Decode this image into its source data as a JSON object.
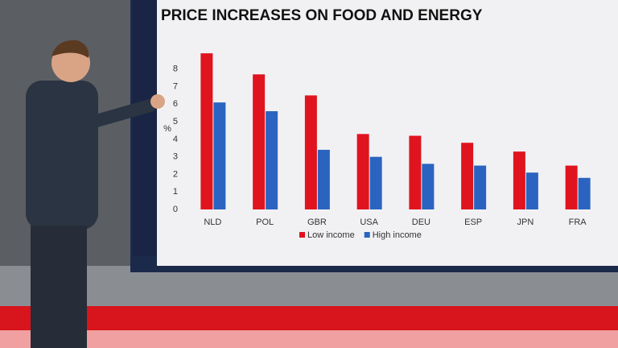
{
  "chart_data": {
    "type": "bar",
    "title": "PRICE INCREASES ON FOOD AND ENERGY",
    "ylabel": "%",
    "categories": [
      "NLD",
      "POL",
      "GBR",
      "USA",
      "DEU",
      "ESP",
      "JPN",
      "FRA"
    ],
    "series": [
      {
        "name": "Low income",
        "color": "#e0141e",
        "values": [
          8.9,
          7.7,
          6.5,
          4.3,
          4.2,
          3.8,
          3.3,
          2.5
        ]
      },
      {
        "name": "High income",
        "color": "#2a64c0",
        "values": [
          6.1,
          5.6,
          3.4,
          3.0,
          2.6,
          2.5,
          2.1,
          1.8
        ]
      }
    ],
    "ylim": [
      0,
      9
    ],
    "yticks": [
      0,
      1,
      2,
      3,
      4,
      5,
      6,
      7,
      8
    ],
    "grid": false,
    "legend": "bottom"
  }
}
